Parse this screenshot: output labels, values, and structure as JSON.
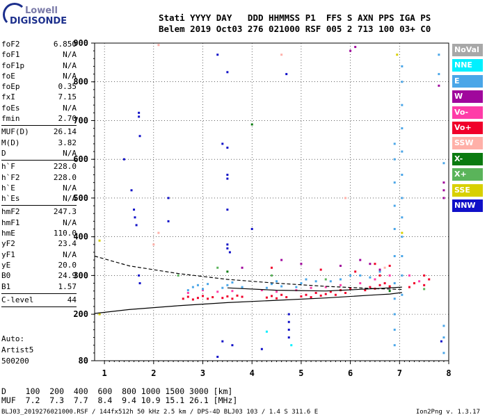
{
  "logo": {
    "line1": "Lowell",
    "line2": "DIGISONDE"
  },
  "header": {
    "labels": "Stati YYYY DAY   DDD HHMMSS P1  FFS S AXN PPS IGA PS",
    "values": "Belem 2019 Oct03 276 021000 RSF 005 2 713 100 03+ C0"
  },
  "params_group1": [
    {
      "name": "foF2",
      "value": "6.850"
    },
    {
      "name": "foF1",
      "value": "N/A"
    },
    {
      "name": "foF1p",
      "value": "N/A"
    },
    {
      "name": "foE",
      "value": "N/A"
    },
    {
      "name": "foEp",
      "value": "0.35"
    },
    {
      "name": "fxI",
      "value": "7.15"
    },
    {
      "name": "foEs",
      "value": "N/A"
    },
    {
      "name": "fmin",
      "value": "2.70"
    }
  ],
  "params_group2": [
    {
      "name": "MUF(D)",
      "value": "26.14"
    },
    {
      "name": "M(D)",
      "value": "3.82"
    },
    {
      "name": "D",
      "value": "N/A"
    }
  ],
  "params_group3": [
    {
      "name": "h`F",
      "value": "228.0"
    },
    {
      "name": "h`F2",
      "value": "228.0"
    },
    {
      "name": "h`E",
      "value": "N/A"
    },
    {
      "name": "h`Es",
      "value": "N/A"
    }
  ],
  "params_group4": [
    {
      "name": "hmF2",
      "value": "247.3"
    },
    {
      "name": "hmF1",
      "value": "N/A"
    },
    {
      "name": "hmE",
      "value": "110.0"
    },
    {
      "name": "yF2",
      "value": "23.4"
    },
    {
      "name": "yF1",
      "value": "N/A"
    },
    {
      "name": "yE",
      "value": "20.0"
    },
    {
      "name": "B0",
      "value": "24.9"
    },
    {
      "name": "B1",
      "value": "1.57"
    }
  ],
  "params_group5": [
    {
      "name": "C-level",
      "value": "44"
    }
  ],
  "auto": {
    "line1": "Auto:",
    "line2": "Artist5",
    "line3": "500200"
  },
  "legend": [
    {
      "label": "NoVal",
      "color": "#a8a8a8"
    },
    {
      "label": "NNE",
      "color": "#00f0ff"
    },
    {
      "label": "E",
      "color": "#4aa6e8"
    },
    {
      "label": "W",
      "color": "#a0079c"
    },
    {
      "label": "Vo-",
      "color": "#ff3ca8"
    },
    {
      "label": "Vo+",
      "color": "#f0002a"
    },
    {
      "label": "SSW",
      "color": "#ffb0a8"
    },
    {
      "label": "X-",
      "color": "#0a7a10"
    },
    {
      "label": "X+",
      "color": "#5ab45a"
    },
    {
      "label": "SSE",
      "color": "#d8d000"
    },
    {
      "label": "NNW",
      "color": "#1010c8"
    }
  ],
  "chart_data": {
    "type": "scatter",
    "title": "",
    "xlabel": "",
    "ylabel": "",
    "xlim": [
      0.8,
      8.0
    ],
    "ylim": [
      80,
      900
    ],
    "xticks": [
      1,
      2,
      3,
      4,
      5,
      6,
      7,
      8
    ],
    "yticks": [
      80,
      200,
      300,
      400,
      500,
      600,
      700,
      800,
      900
    ],
    "grid": true,
    "series": [
      {
        "color": "#f0002a",
        "points": [
          [
            2.6,
            240
          ],
          [
            2.7,
            245
          ],
          [
            2.8,
            238
          ],
          [
            2.9,
            242
          ],
          [
            3.0,
            247
          ],
          [
            3.1,
            240
          ],
          [
            3.2,
            244
          ],
          [
            3.4,
            242
          ],
          [
            3.5,
            246
          ],
          [
            3.6,
            240
          ],
          [
            3.7,
            248
          ],
          [
            3.8,
            245
          ],
          [
            4.3,
            243
          ],
          [
            4.4,
            247
          ],
          [
            4.5,
            241
          ],
          [
            4.6,
            250
          ],
          [
            4.7,
            244
          ],
          [
            5.0,
            246
          ],
          [
            5.1,
            250
          ],
          [
            5.2,
            244
          ],
          [
            5.3,
            255
          ],
          [
            5.4,
            248
          ],
          [
            5.5,
            252
          ],
          [
            5.6,
            258
          ],
          [
            5.7,
            250
          ],
          [
            5.8,
            262
          ],
          [
            5.9,
            255
          ],
          [
            6.0,
            265
          ],
          [
            6.3,
            262
          ],
          [
            6.4,
            270
          ],
          [
            6.5,
            266
          ],
          [
            6.6,
            275
          ],
          [
            6.7,
            280
          ],
          [
            6.8,
            272
          ],
          [
            7.2,
            270
          ],
          [
            7.3,
            280
          ],
          [
            7.5,
            275
          ],
          [
            7.6,
            290
          ],
          [
            4.4,
            320
          ],
          [
            5.4,
            315
          ],
          [
            6.1,
            310
          ],
          [
            6.5,
            330
          ],
          [
            6.6,
            300
          ],
          [
            6.8,
            325
          ],
          [
            7.5,
            300
          ]
        ]
      },
      {
        "color": "#ff3ca8",
        "points": [
          [
            2.7,
            255
          ],
          [
            3.0,
            262
          ],
          [
            3.3,
            258
          ],
          [
            3.6,
            260
          ],
          [
            4.2,
            262
          ],
          [
            4.5,
            258
          ],
          [
            4.9,
            262
          ],
          [
            5.2,
            268
          ],
          [
            5.5,
            270
          ],
          [
            5.8,
            275
          ],
          [
            6.2,
            280
          ],
          [
            6.5,
            290
          ],
          [
            6.8,
            300
          ],
          [
            7.2,
            300
          ],
          [
            7.4,
            285
          ]
        ]
      },
      {
        "color": "#4aa6e8",
        "points": [
          [
            2.7,
            262
          ],
          [
            2.8,
            270
          ],
          [
            2.9,
            275
          ],
          [
            3.0,
            265
          ],
          [
            3.1,
            278
          ],
          [
            3.4,
            268
          ],
          [
            3.5,
            275
          ],
          [
            3.6,
            282
          ],
          [
            3.8,
            270
          ],
          [
            4.3,
            268
          ],
          [
            4.4,
            278
          ],
          [
            4.5,
            285
          ],
          [
            4.6,
            272
          ],
          [
            4.9,
            270
          ],
          [
            5.0,
            280
          ],
          [
            5.1,
            290
          ],
          [
            5.3,
            285
          ],
          [
            5.6,
            285
          ],
          [
            5.8,
            290
          ],
          [
            6.0,
            300
          ],
          [
            6.2,
            300
          ],
          [
            6.4,
            295
          ],
          [
            6.6,
            310
          ],
          [
            6.9,
            120
          ],
          [
            6.9,
            160
          ],
          [
            6.9,
            200
          ],
          [
            6.9,
            240
          ],
          [
            6.9,
            280
          ],
          [
            6.9,
            350
          ],
          [
            6.9,
            420
          ],
          [
            6.9,
            480
          ],
          [
            6.9,
            540
          ],
          [
            6.9,
            600
          ],
          [
            6.9,
            640
          ],
          [
            7.05,
            250
          ],
          [
            7.05,
            300
          ],
          [
            7.05,
            350
          ],
          [
            7.05,
            400
          ],
          [
            7.05,
            450
          ],
          [
            7.05,
            500
          ],
          [
            7.05,
            560
          ],
          [
            7.05,
            620
          ],
          [
            7.05,
            680
          ],
          [
            7.05,
            740
          ],
          [
            7.05,
            800
          ],
          [
            7.05,
            840
          ],
          [
            7.8,
            870
          ],
          [
            7.8,
            820
          ],
          [
            7.9,
            590
          ],
          [
            7.9,
            170
          ],
          [
            7.9,
            140
          ],
          [
            7.9,
            100
          ]
        ]
      },
      {
        "color": "#a0079c",
        "points": [
          [
            3.8,
            320
          ],
          [
            4.6,
            340
          ],
          [
            5.0,
            330
          ],
          [
            5.8,
            325
          ],
          [
            6.0,
            880
          ],
          [
            6.1,
            890
          ],
          [
            6.2,
            340
          ],
          [
            6.4,
            330
          ],
          [
            6.6,
            315
          ],
          [
            7.8,
            790
          ],
          [
            7.9,
            540
          ],
          [
            7.9,
            520
          ],
          [
            7.9,
            500
          ]
        ]
      },
      {
        "color": "#1010c8",
        "points": [
          [
            1.4,
            600
          ],
          [
            1.55,
            520
          ],
          [
            1.6,
            470
          ],
          [
            1.62,
            450
          ],
          [
            1.65,
            430
          ],
          [
            1.7,
            720
          ],
          [
            1.7,
            710
          ],
          [
            1.72,
            660
          ],
          [
            1.7,
            300
          ],
          [
            1.72,
            280
          ],
          [
            2.3,
            500
          ],
          [
            2.3,
            440
          ],
          [
            3.3,
            870
          ],
          [
            3.3,
            90
          ],
          [
            3.4,
            640
          ],
          [
            3.5,
            630
          ],
          [
            3.5,
            560
          ],
          [
            3.5,
            550
          ],
          [
            3.5,
            470
          ],
          [
            3.5,
            380
          ],
          [
            3.5,
            370
          ],
          [
            3.55,
            360
          ],
          [
            3.5,
            825
          ],
          [
            3.4,
            130
          ],
          [
            3.6,
            120
          ],
          [
            4.0,
            420
          ],
          [
            4.2,
            110
          ],
          [
            4.7,
            820
          ],
          [
            4.75,
            200
          ],
          [
            4.75,
            180
          ],
          [
            4.75,
            160
          ],
          [
            4.75,
            140
          ],
          [
            7.85,
            130
          ]
        ]
      },
      {
        "color": "#0a7a10",
        "points": [
          [
            4.0,
            690
          ],
          [
            3.5,
            310
          ],
          [
            6.8,
            260
          ]
        ]
      },
      {
        "color": "#5ab45a",
        "points": [
          [
            2.5,
            300
          ],
          [
            3.3,
            320
          ],
          [
            4.4,
            300
          ],
          [
            5.5,
            290
          ],
          [
            7.5,
            265
          ]
        ]
      },
      {
        "color": "#d8d000",
        "points": [
          [
            6.95,
            870
          ],
          [
            7.05,
            410
          ],
          [
            0.9,
            390
          ],
          [
            0.9,
            200
          ]
        ]
      },
      {
        "color": "#ffb0a8",
        "points": [
          [
            2.1,
            895
          ],
          [
            2.1,
            410
          ],
          [
            2.0,
            380
          ],
          [
            4.6,
            870
          ],
          [
            5.9,
            500
          ],
          [
            6.7,
            320
          ]
        ]
      },
      {
        "color": "#00f0ff",
        "points": [
          [
            4.3,
            155
          ],
          [
            4.8,
            120
          ]
        ]
      }
    ],
    "curves": [
      {
        "style": "solid",
        "points": [
          [
            0.8,
            202
          ],
          [
            1.5,
            212
          ],
          [
            2.5,
            222
          ],
          [
            3.5,
            230
          ],
          [
            4.5,
            236
          ],
          [
            5.5,
            242
          ],
          [
            6.5,
            250
          ],
          [
            6.8,
            252
          ],
          [
            7.05,
            256
          ]
        ]
      },
      {
        "style": "solid",
        "points": [
          [
            3.5,
            268
          ],
          [
            4.5,
            262
          ],
          [
            5.5,
            260
          ],
          [
            6.5,
            266
          ],
          [
            7.05,
            270
          ]
        ]
      },
      {
        "style": "dashed",
        "points": [
          [
            0.8,
            350
          ],
          [
            1.5,
            325
          ],
          [
            2.5,
            305
          ],
          [
            3.5,
            290
          ],
          [
            4.5,
            280
          ],
          [
            5.5,
            272
          ],
          [
            6.5,
            266
          ],
          [
            7.05,
            264
          ]
        ]
      }
    ]
  },
  "muf_table": {
    "row1_label": "D",
    "row1_values": "100  200  400  600  800 1000 1500 3000 [km]",
    "row2_label": "MUF",
    "row2_values": "7.2  7.3  7.7  8.4  9.4 10.9 15.1 26.1 [MHz]"
  },
  "footer": {
    "left": "BLJ03_2019276021000.RSF / 144fx512h 50 kHz 2.5 km / DPS-4D BLJ03 103 / 1.4 S 311.6 E",
    "right": "Ion2Png v. 1.3.17"
  }
}
